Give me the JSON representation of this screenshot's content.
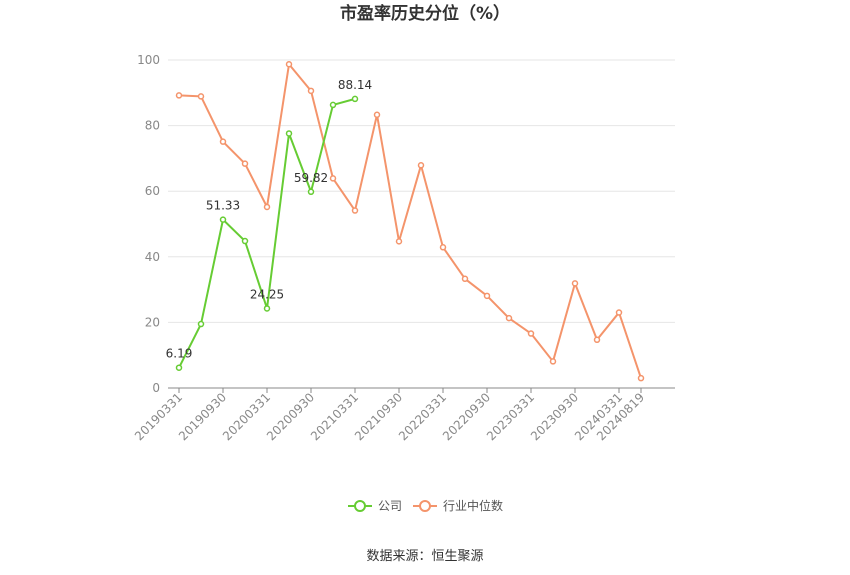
{
  "chart_data": {
    "type": "line",
    "title": "市盈率历史分位（%）",
    "xlabel": "",
    "ylabel": "",
    "ylim": [
      0,
      100
    ],
    "yticks": [
      0,
      20,
      40,
      60,
      80,
      100
    ],
    "x": [
      "20190331",
      "20190630",
      "20190930",
      "20191231",
      "20200331",
      "20200630",
      "20200930",
      "20201231",
      "20210331",
      "20210630",
      "20210930",
      "20211231",
      "20220331",
      "20220630",
      "20220930",
      "20221231",
      "20230331",
      "20230630",
      "20230930",
      "20231231",
      "20240331",
      "20240819"
    ],
    "xtick_labels": [
      "20190331",
      "20190930",
      "20200331",
      "20200930",
      "20210331",
      "20210930",
      "20220331",
      "20220930",
      "20230331",
      "20230930",
      "20240331",
      "20240819"
    ],
    "series": [
      {
        "name": "公司",
        "color": "#66cc33",
        "values": [
          6.19,
          19.5,
          51.33,
          44.8,
          24.25,
          77.6,
          59.82,
          86.3,
          88.14,
          null,
          null,
          null,
          null,
          null,
          null,
          null,
          null,
          null,
          null,
          null,
          null,
          null
        ],
        "data_labels": [
          {
            "index": 0,
            "text": "6.19"
          },
          {
            "index": 2,
            "text": "51.33"
          },
          {
            "index": 4,
            "text": "24.25"
          },
          {
            "index": 6,
            "text": "59.82"
          },
          {
            "index": 8,
            "text": "88.14"
          }
        ]
      },
      {
        "name": "行业中位数",
        "color": "#f4946b",
        "values": [
          89.2,
          88.9,
          75.1,
          68.4,
          55.2,
          98.7,
          90.6,
          63.9,
          54.1,
          83.3,
          44.7,
          67.9,
          42.9,
          33.3,
          28.1,
          21.3,
          16.6,
          8.1,
          31.9,
          14.7,
          23.0,
          3.0
        ]
      }
    ],
    "legend": {
      "placement": "bottom-center",
      "items": [
        "公司",
        "行业中位数"
      ]
    },
    "grid": true,
    "source": "数据来源：恒生聚源"
  }
}
